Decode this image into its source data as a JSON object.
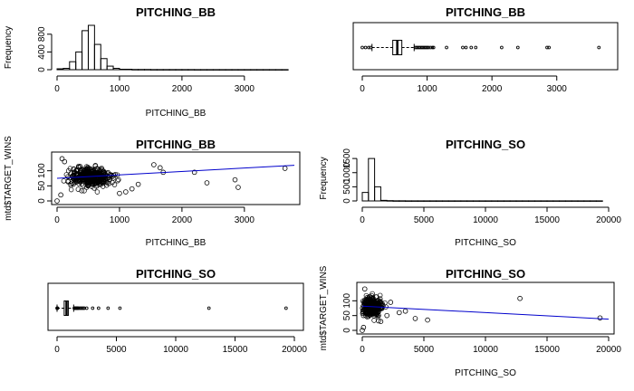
{
  "chart_data": [
    {
      "id": "p1",
      "type": "histogram",
      "title": "PITCHING_BB",
      "xlabel": "PITCHING_BB",
      "ylabel": "Frequency",
      "xlim": [
        0,
        3800
      ],
      "xticks": [
        0,
        1000,
        2000,
        3000
      ],
      "ylim": [
        0,
        1000
      ],
      "yticks": [
        0,
        400,
        800
      ],
      "bin_width": 100,
      "bin_start": 0,
      "counts": [
        20,
        30,
        180,
        400,
        880,
        1000,
        570,
        250,
        80,
        30,
        10,
        10,
        5,
        5,
        5,
        3,
        3,
        3,
        3,
        3,
        3,
        3,
        2,
        2,
        2,
        2,
        2,
        2,
        2,
        2,
        2,
        2,
        2,
        2,
        2,
        2,
        2
      ]
    },
    {
      "id": "p2",
      "type": "boxplot",
      "title": "PITCHING_BB",
      "xlim": [
        0,
        3800
      ],
      "xticks": [
        0,
        1000,
        2000,
        3000
      ],
      "whisker_low": 150,
      "q1": 470,
      "median": 540,
      "q3": 610,
      "whisker_high": 800,
      "outliers": [
        0,
        50,
        100,
        130,
        820,
        840,
        860,
        880,
        900,
        920,
        940,
        960,
        980,
        1000,
        1020,
        1050,
        1080,
        1100,
        1300,
        1550,
        1600,
        1680,
        1750,
        2150,
        2400,
        2850,
        2880,
        3650
      ]
    },
    {
      "id": "p3",
      "type": "scatter",
      "title": "PITCHING_BB",
      "xlabel": "PITCHING_BB",
      "ylabel": "mtd$TARGET_WINS",
      "xlim": [
        0,
        3800
      ],
      "xticks": [
        0,
        1000,
        2000,
        3000
      ],
      "ylim": [
        0,
        150
      ],
      "yticks": [
        0,
        50,
        100
      ],
      "fit_line": [
        [
          0,
          75
        ],
        [
          3800,
          118
        ]
      ],
      "outlier_points": [
        [
          0,
          0
        ],
        [
          60,
          20
        ],
        [
          80,
          140
        ],
        [
          120,
          130
        ],
        [
          1000,
          25
        ],
        [
          1100,
          30
        ],
        [
          1200,
          40
        ],
        [
          1300,
          55
        ],
        [
          1550,
          120
        ],
        [
          1650,
          110
        ],
        [
          1700,
          95
        ],
        [
          2200,
          95
        ],
        [
          2400,
          60
        ],
        [
          2850,
          70
        ],
        [
          2900,
          45
        ],
        [
          3650,
          108
        ]
      ]
    },
    {
      "id": "p4",
      "type": "histogram",
      "title": "PITCHING_SO",
      "xlabel": "PITCHING_SO",
      "ylabel": "Frequency",
      "xlim": [
        0,
        20000
      ],
      "xticks": [
        0,
        5000,
        10000,
        15000,
        20000
      ],
      "ylim": [
        0,
        1600
      ],
      "yticks": [
        0,
        500,
        1000,
        1500
      ],
      "bin_width": 500,
      "bin_start": 0,
      "counts": [
        300,
        1500,
        500,
        20,
        10,
        5,
        5,
        3,
        3,
        3,
        3,
        3,
        3,
        3,
        3,
        3,
        3,
        3,
        3,
        3,
        3,
        3,
        3,
        3,
        3,
        3,
        3,
        3,
        3,
        3,
        3,
        3,
        3,
        3,
        3,
        3,
        3,
        3,
        3
      ]
    },
    {
      "id": "p5",
      "type": "boxplot",
      "title": "PITCHING_SO",
      "xlim": [
        0,
        20000
      ],
      "xticks": [
        0,
        5000,
        10000,
        15000,
        20000
      ],
      "whisker_low": 0,
      "q1": 600,
      "median": 800,
      "q3": 950,
      "whisker_high": 1400,
      "outliers": [
        0,
        20,
        40,
        1450,
        1500,
        1550,
        1600,
        1650,
        1700,
        1750,
        1800,
        1900,
        2000,
        2100,
        2200,
        2300,
        2500,
        3000,
        3500,
        4300,
        5300,
        12800,
        19300
      ]
    },
    {
      "id": "p6",
      "type": "scatter",
      "title": "PITCHING_SO",
      "xlabel": "PITCHING_SO",
      "ylabel": "mtd$TARGET_WINS",
      "xlim": [
        0,
        20000
      ],
      "xticks": [
        0,
        5000,
        10000,
        15000,
        20000
      ],
      "ylim": [
        0,
        150
      ],
      "yticks": [
        0,
        50,
        100
      ],
      "fit_line": [
        [
          0,
          82
        ],
        [
          20000,
          38
        ]
      ],
      "outlier_points": [
        [
          0,
          0
        ],
        [
          100,
          10
        ],
        [
          200,
          140
        ],
        [
          1500,
          30
        ],
        [
          2000,
          50
        ],
        [
          2300,
          95
        ],
        [
          3000,
          60
        ],
        [
          3500,
          65
        ],
        [
          4300,
          40
        ],
        [
          5300,
          35
        ],
        [
          12800,
          108
        ],
        [
          19300,
          42
        ]
      ]
    }
  ]
}
